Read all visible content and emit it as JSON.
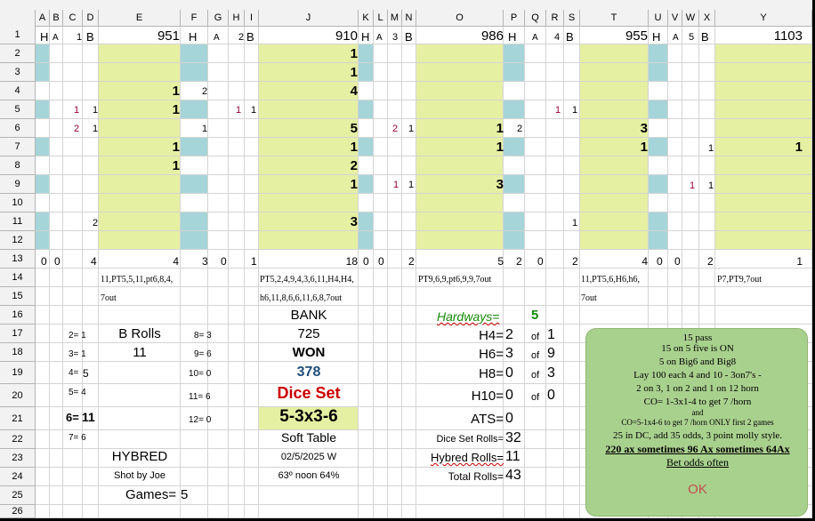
{
  "columns": [
    "A",
    "B",
    "C",
    "D",
    "E",
    "F",
    "G",
    "H",
    "I",
    "J",
    "K",
    "L",
    "M",
    "N",
    "O",
    "P",
    "Q",
    "R",
    "S",
    "T",
    "U",
    "V",
    "W",
    "X",
    "Y"
  ],
  "rows": [
    "1",
    "2",
    "3",
    "4",
    "5",
    "6",
    "7",
    "8",
    "9",
    "10",
    "11",
    "12",
    "13",
    "14",
    "15",
    "16",
    "17",
    "18",
    "19",
    "20",
    "21",
    "22",
    "23",
    "24",
    "25",
    "26"
  ],
  "colors": {
    "yellow_green": "#e6f0a3",
    "teal": "#a5d5d8",
    "red": "#cc0000",
    "magenta": "#990033",
    "green": "#138a07",
    "navy": "#1f4e79",
    "note_bg": "#a9d18e",
    "ok_red": "#c0504d"
  },
  "row1": {
    "H1": "H",
    "A1": "A",
    "n1": "1",
    "B1": "B",
    "total1": "951",
    "H2": "H",
    "A2": "A",
    "n2": "2",
    "B2": "B",
    "total2": "910",
    "H3": "H",
    "A3": "A",
    "n3": "3",
    "B3": "B",
    "total3": "986",
    "H4": "H",
    "A4": "A",
    "n4": "4",
    "B4": "B",
    "total4": "955",
    "H5": "H",
    "A5": "A",
    "n5": "5",
    "B5": "B",
    "total5": "1103"
  },
  "game1": {
    "e4": "1",
    "f4": "2",
    "c5": "1",
    "d5": "1",
    "e5": "1",
    "c6": "2",
    "d6": "1",
    "f6": "1",
    "e7": "1",
    "e8": "1",
    "d11": "2"
  },
  "game2": {
    "i5": "1",
    "j2": "1",
    "j3": "1",
    "j4": "4",
    "j6": "5",
    "j7": "1",
    "j8": "2",
    "j9": "1",
    "j11": "3",
    "i5b": "1"
  },
  "game3": {
    "m6": "2",
    "n6": "1",
    "m9": "1",
    "n9": "1",
    "o6": "1",
    "p6": "2",
    "o7": "1",
    "o9": "3",
    "r5": "1",
    "s5": "1",
    "s11": "1"
  },
  "game4": {
    "t6": "3",
    "t7": "1",
    "x7": "1",
    "y7": "1",
    "w9": "1",
    "x9": "1"
  },
  "row13": {
    "a": "0",
    "b": "0",
    "d": "4",
    "e": "4",
    "f": "3",
    "g": "0",
    "i": "1",
    "j": "18",
    "k": "0",
    "l": "0",
    "n": "2",
    "o": "5",
    "p": "2",
    "q": "0",
    "s": "2",
    "t": "4",
    "u": "0",
    "v": "0",
    "x": "2",
    "y": "1"
  },
  "sequences": {
    "g1_r14": "11,PT5,5,11,pt6,8,4,",
    "g1_r15": "7out",
    "g2_r14": "PT5,2,4,9,4,3,6,11,H4,H4,",
    "g2_r15": "h6,11,8,6,6,11,6,8,7out",
    "g3_r14": "PT9,6,9,pt6,9,9,7out",
    "g4_r14": "11,PT5,6,H6,h6,",
    "g4_r15": "7out",
    "g5_r14": "P7,PT9,7out"
  },
  "stats_left": {
    "s2": "2= 1",
    "s3": "3= 1",
    "s4": "4=",
    "s4v": "5",
    "s5": "5= 4",
    "s6": "6=",
    "s6v": "11",
    "s7": "7= 6",
    "b_rolls": "B Rolls",
    "b_rolls_val": "11",
    "s8": "8= 3",
    "s9": "9= 6",
    "s10": "10= 0",
    "s11": "11= 6",
    "s12": "12= 0"
  },
  "center": {
    "bank_label": "BANK",
    "bank_value": "725",
    "won_label": "WON",
    "won_value": "378",
    "dice_set_label": "Dice Set",
    "dice_set_value": "5-3x3-6",
    "table": "Soft Table",
    "date": "02/5/2025 W",
    "weather": "63º noon 64%"
  },
  "bottom_left": {
    "hybred": "HYBRED",
    "shot_by": "Shot by Joe",
    "games_label": "Games=",
    "games_value": "5"
  },
  "hardways": {
    "label": "Hardways=",
    "total": "5",
    "h4_label": "H4=",
    "h4": "2",
    "h4_of": "of",
    "h4_of_val": "1",
    "h6_label": "H6=",
    "h6": "3",
    "h6_of": "of",
    "h6_of_val": "9",
    "h8_label": "H8=",
    "h8": "0",
    "h8_of": "of",
    "h8_of_val": "3",
    "h10_label": "H10=",
    "h10": "0",
    "h10_of": "of",
    "h10_of_val": "0",
    "ats_label": "ATS=",
    "ats": "0",
    "dice_set_rolls_label": "Dice Set Rolls=",
    "dice_set_rolls": "32",
    "hybred_rolls_label": "Hybred Rolls=",
    "hybred_rolls": "11",
    "total_rolls_label": "Total Rolls=",
    "total_rolls": "43"
  },
  "note": {
    "l1": "15 pass",
    "l2": "15 on 5 five is ON",
    "l3": "5 on Big6 and Big8",
    "l4": "Lay 100 each 4 and 10 - 3on7's -",
    "l5": "2 on 3, 1 on 2 and 1 on 12 horn",
    "l6": "CO= 1-3x1-4 to get 7 /horn",
    "l7": "and",
    "l8": "CO=5-1x4-6 to get 7 /horn  ONLY first 2 games",
    "l9": "25 in DC, add  35 odds, 3 point molly style.",
    "l10": "220 ax sometimes 96 Ax sometimes 64Ax",
    "l11": "Bet odds often",
    "ok": "OK"
  }
}
